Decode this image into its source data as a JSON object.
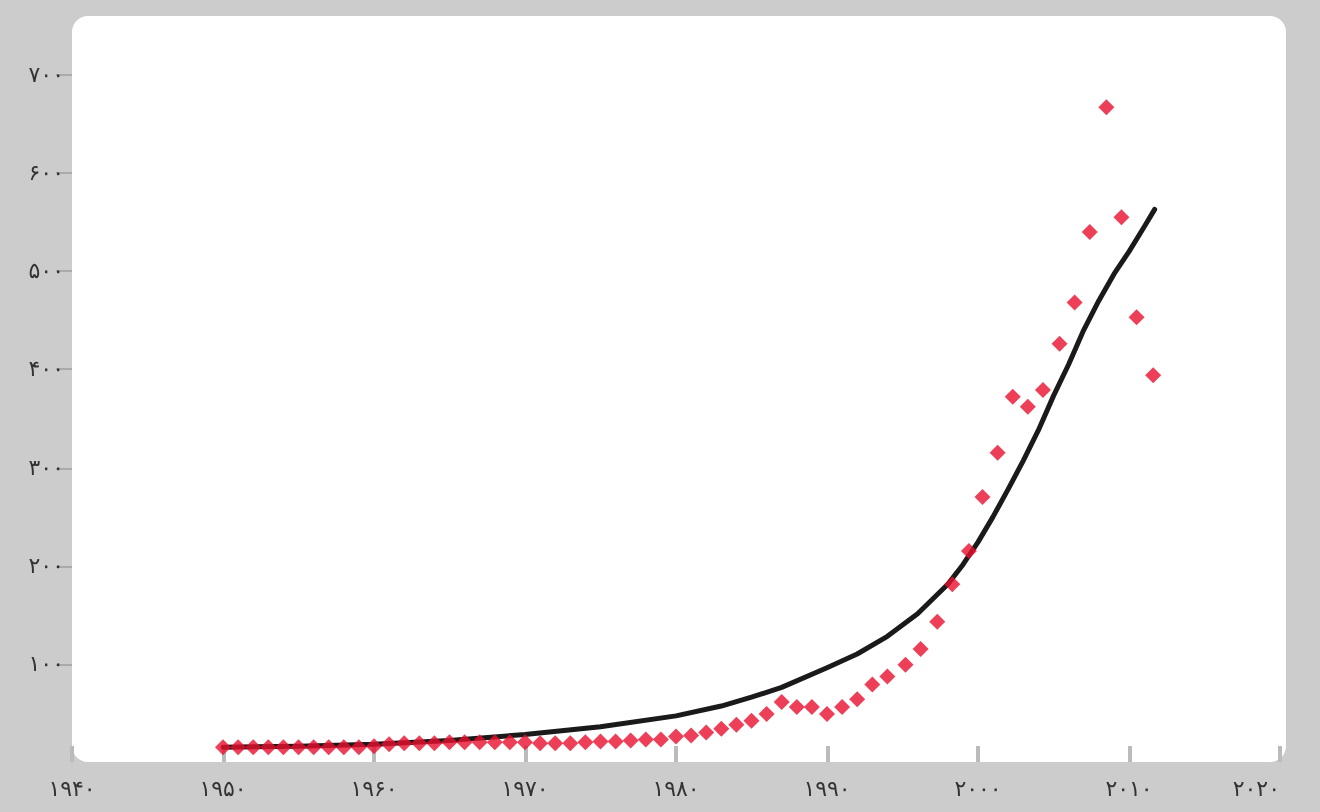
{
  "chart_data": {
    "type": "scatter",
    "xlim": [
      1940,
      2020
    ],
    "ylim": [
      0,
      760
    ],
    "xticks": [
      {
        "value": 1940,
        "label": "۱۹۴۰"
      },
      {
        "value": 1950,
        "label": "۱۹۵۰"
      },
      {
        "value": 1960,
        "label": "۱۹۶۰"
      },
      {
        "value": 1970,
        "label": "۱۹۷۰"
      },
      {
        "value": 1980,
        "label": "۱۹۸۰"
      },
      {
        "value": 1990,
        "label": "۱۹۹۰"
      },
      {
        "value": 2000,
        "label": "۲۰۰۰"
      },
      {
        "value": 2010,
        "label": "۲۰۱۰"
      },
      {
        "value": 2020,
        "label": "۲۰۲۰"
      }
    ],
    "yticks": [
      {
        "value": 100,
        "label": "۱۰۰"
      },
      {
        "value": 200,
        "label": "۲۰۰"
      },
      {
        "value": 300,
        "label": "۳۰۰"
      },
      {
        "value": 400,
        "label": "۴۰۰"
      },
      {
        "value": 500,
        "label": "۵۰۰"
      },
      {
        "value": 600,
        "label": "۶۰۰"
      },
      {
        "value": 700,
        "label": "۷۰۰"
      }
    ],
    "grid": false,
    "marker": "diamond",
    "series": [
      {
        "color": "#e8102e",
        "x": [
          1950,
          1951,
          1952,
          1953,
          1954,
          1955,
          1956,
          1957,
          1958,
          1959,
          1960,
          1961,
          1962,
          1963,
          1964,
          1965,
          1966,
          1967,
          1968,
          1969,
          1970,
          1971,
          1972,
          1973,
          1974,
          1975,
          1976,
          1977,
          1978,
          1979,
          1980,
          1981,
          1982,
          1983,
          1984,
          1985,
          1986,
          1987,
          1988,
          1989,
          1990,
          1991,
          1992,
          1993,
          1994,
          1995.2,
          1996.2,
          1997.3,
          1998.3,
          1999.4,
          2000.3,
          2001.3,
          2002.3,
          2003.3,
          2004.3,
          2005.4,
          2006.4,
          2007.4,
          2008.5,
          2009.5,
          2010.5,
          2011.6
        ],
        "values": [
          15,
          15,
          15,
          15,
          15,
          15,
          15,
          15,
          15,
          15,
          16,
          18,
          19,
          19,
          19,
          20,
          20,
          20,
          20,
          20,
          20,
          19,
          19,
          19,
          20,
          21,
          21,
          22,
          23,
          23,
          26,
          27,
          30,
          34,
          38,
          42,
          49,
          61,
          56,
          56,
          49,
          56,
          64,
          79,
          87,
          99,
          115,
          143,
          181,
          215,
          270,
          315,
          372,
          362,
          379,
          426,
          468,
          540,
          667,
          555,
          453,
          394
        ]
      },
      {
        "type": "line",
        "color": "#1a1a1a",
        "line_style": "solid",
        "marker": "none",
        "x": [
          1950,
          1955,
          1960,
          1965,
          1970,
          1975,
          1980,
          1983,
          1985,
          1987,
          1990,
          1992,
          1994,
          1996,
          1998,
          1999,
          2000,
          2001,
          2002,
          2003,
          2004,
          2005,
          2006,
          2007,
          2008,
          2009,
          2010,
          2011,
          2011.7
        ],
        "values": [
          15,
          16,
          18,
          22,
          28,
          36,
          47,
          57,
          66,
          76,
          96,
          110,
          128,
          151,
          181,
          201,
          224,
          250,
          278,
          307,
          338,
          373,
          405,
          440,
          470,
          497,
          520,
          545,
          563
        ]
      }
    ]
  }
}
